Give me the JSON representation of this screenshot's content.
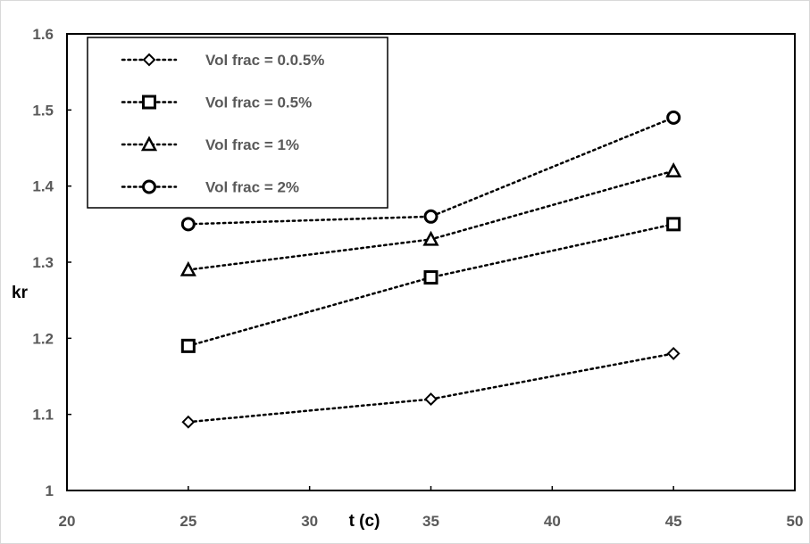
{
  "chart_data": {
    "type": "line",
    "title": "",
    "xlabel": "t (c)",
    "ylabel": "kr",
    "xlim": [
      20,
      50
    ],
    "ylim": [
      1,
      1.6
    ],
    "x_ticks": [
      "20",
      "25",
      "30",
      "35",
      "40",
      "45",
      "50"
    ],
    "y_ticks": [
      "1",
      "1.1",
      "1.2",
      "1.3",
      "1.4",
      "1.5",
      "1.6"
    ],
    "grid": false,
    "legend_position": "top-left",
    "line_style": "dotted",
    "line_color": "#000000",
    "x": [
      25,
      35,
      45
    ],
    "series": [
      {
        "name": "Vol frac = 0.0.5%",
        "marker": "diamond",
        "values": [
          1.09,
          1.12,
          1.18
        ]
      },
      {
        "name": "Vol frac = 0.5%",
        "marker": "square",
        "values": [
          1.19,
          1.28,
          1.35
        ]
      },
      {
        "name": "Vol frac = 1%",
        "marker": "triangle",
        "values": [
          1.29,
          1.33,
          1.42
        ]
      },
      {
        "name": "Vol frac = 2%",
        "marker": "circle",
        "values": [
          1.35,
          1.36,
          1.49
        ]
      }
    ]
  }
}
